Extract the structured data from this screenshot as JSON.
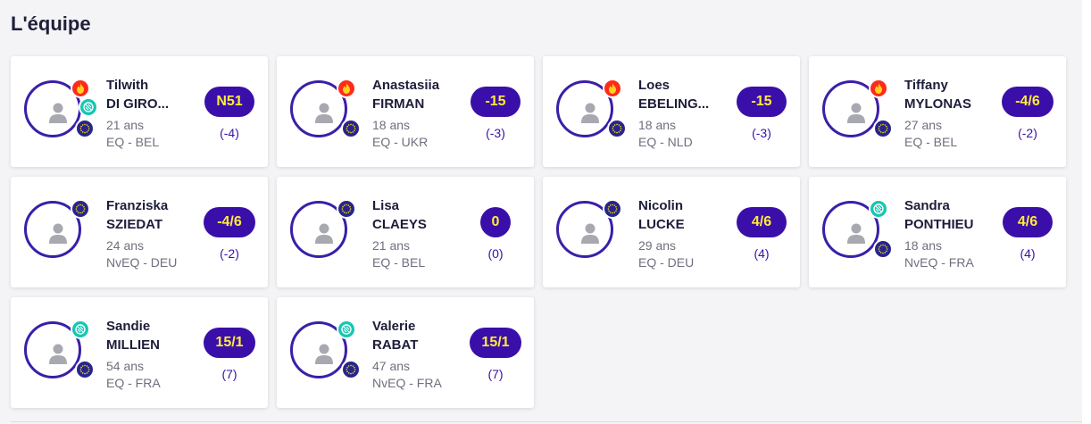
{
  "section": {
    "title": "L'équipe"
  },
  "colors": {
    "pill_bg": "#3a0fa9",
    "pill_text": "#ffeb3b",
    "avatar_ring": "#3a1fa8",
    "fire": "#ff2a1c",
    "padel": "#15c7b1",
    "eu": "#26268a"
  },
  "players": [
    {
      "first": "Tilwith",
      "last": "DI GIRO...",
      "age": "21 ans",
      "club": "EQ - BEL",
      "rank": "N51",
      "delta": "(-4)",
      "badges": [
        "fire-icon",
        "padel-icon",
        "eu-icon"
      ]
    },
    {
      "first": "Anastasiia",
      "last": "FIRMAN",
      "age": "18 ans",
      "club": "EQ - UKR",
      "rank": "-15",
      "delta": "(-3)",
      "badges": [
        "fire-icon",
        "eu-icon"
      ]
    },
    {
      "first": "Loes",
      "last": "EBELING...",
      "age": "18 ans",
      "club": "EQ - NLD",
      "rank": "-15",
      "delta": "(-3)",
      "badges": [
        "fire-icon",
        "eu-icon"
      ]
    },
    {
      "first": "Tiffany",
      "last": "MYLONAS",
      "age": "27 ans",
      "club": "EQ - BEL",
      "rank": "-4/6",
      "delta": "(-2)",
      "badges": [
        "fire-icon",
        "eu-icon"
      ]
    },
    {
      "first": "Franziska",
      "last": "SZIEDAT",
      "age": "24 ans",
      "club": "NvEQ - DEU",
      "rank": "-4/6",
      "delta": "(-2)",
      "badges": [
        "eu-icon"
      ]
    },
    {
      "first": "Lisa",
      "last": "CLAEYS",
      "age": "21 ans",
      "club": "EQ - BEL",
      "rank": "0",
      "delta": "(0)",
      "badges": [
        "eu-icon"
      ]
    },
    {
      "first": "Nicolin",
      "last": "LUCKE",
      "age": "29 ans",
      "club": "EQ - DEU",
      "rank": "4/6",
      "delta": "(4)",
      "badges": [
        "eu-icon"
      ]
    },
    {
      "first": "Sandra",
      "last": "PONTHIEU",
      "age": "18 ans",
      "club": "NvEQ - FRA",
      "rank": "4/6",
      "delta": "(4)",
      "badges": [
        "padel-icon",
        "eu-icon"
      ]
    },
    {
      "first": "Sandie",
      "last": "MILLIEN",
      "age": "54 ans",
      "club": "EQ - FRA",
      "rank": "15/1",
      "delta": "(7)",
      "badges": [
        "padel-icon",
        "eu-icon"
      ]
    },
    {
      "first": "Valerie",
      "last": "RABAT",
      "age": "47 ans",
      "club": "NvEQ - FRA",
      "rank": "15/1",
      "delta": "(7)",
      "badges": [
        "padel-icon",
        "eu-icon"
      ]
    }
  ]
}
